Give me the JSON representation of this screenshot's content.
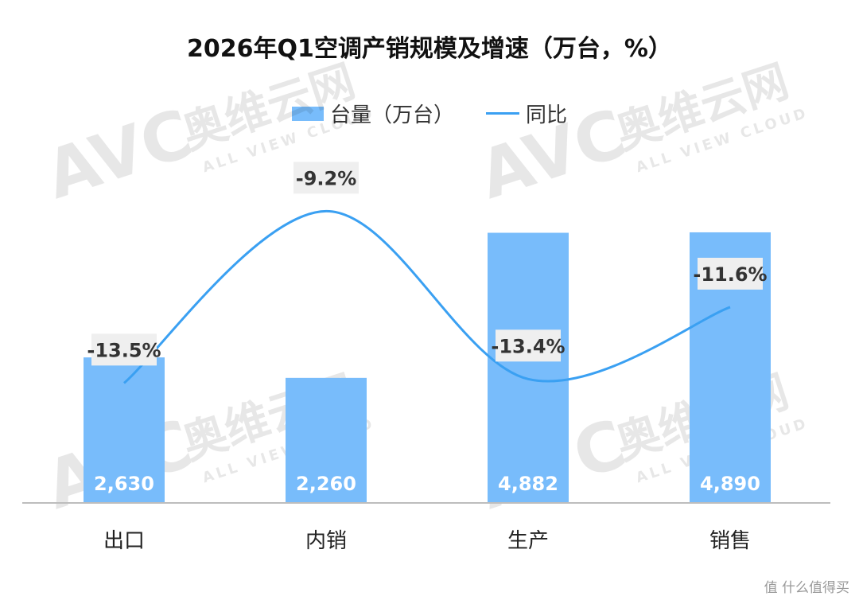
{
  "chart_data": {
    "type": "bar",
    "title": "2026年Q1空调产销规模及增速（万台，%）",
    "categories": [
      "出口",
      "内销",
      "生产",
      "销售"
    ],
    "series": [
      {
        "name": "台量（万台）",
        "type": "bar",
        "values": [
          2630,
          2260,
          4882,
          4890
        ],
        "labels": [
          "2,630",
          "2,260",
          "4,882",
          "4,890"
        ],
        "color": "#78bcfb"
      },
      {
        "name": "同比",
        "type": "line",
        "values": [
          -13.5,
          -9.2,
          -13.4,
          -11.6
        ],
        "labels": [
          "-13.5%",
          "-9.2%",
          "-13.4%",
          "-11.6%"
        ],
        "color": "#3aa0f2"
      }
    ],
    "ylim_bar": [
      0,
      6500
    ],
    "ylim_line": [
      -16.5,
      -7.5
    ],
    "legend_position": "top-center",
    "grid": false
  },
  "brand": {
    "watermark_logo": "AVC",
    "watermark_cn": "奥维云网",
    "watermark_en": "ALL VIEW CLOUD",
    "corner_watermark": "值 什么值得买"
  }
}
